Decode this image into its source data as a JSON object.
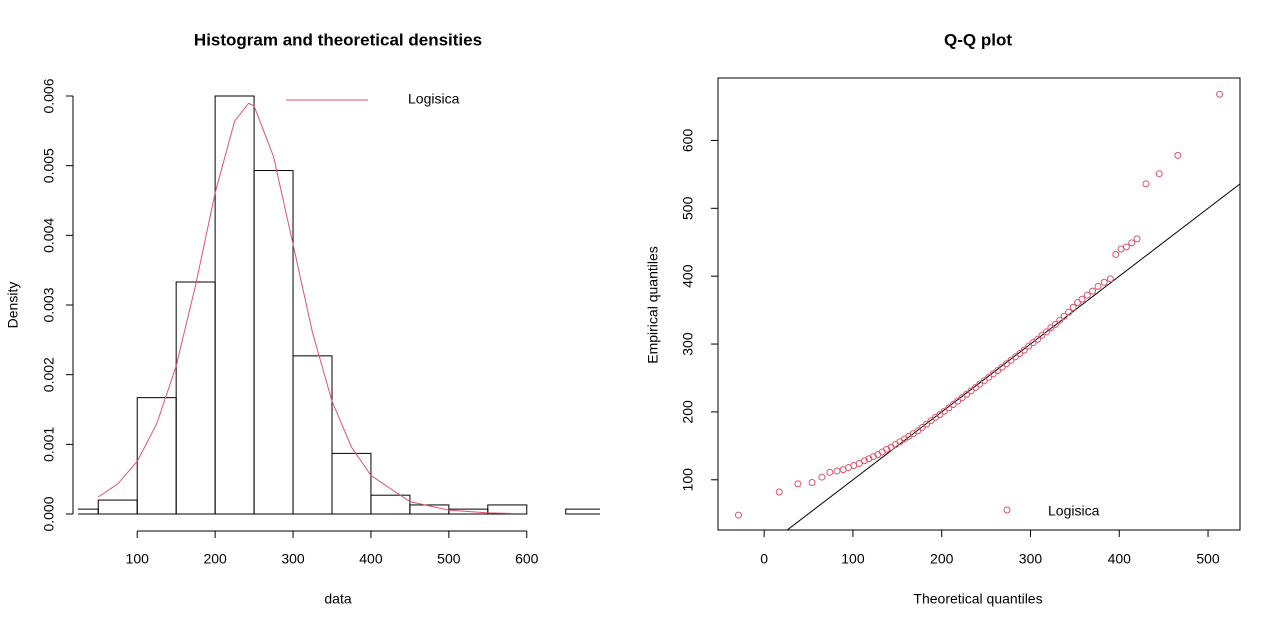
{
  "chart_data": [
    {
      "type": "histogram",
      "title": "Histogram and theoretical densities",
      "x_label": "data",
      "y_label": "Density",
      "bins": [
        0,
        50,
        100,
        150,
        200,
        250,
        300,
        350,
        400,
        450,
        500,
        550,
        600,
        650,
        700
      ],
      "values": [
        7e-05,
        0.0002,
        0.00167,
        0.00333,
        0.006,
        0.00493,
        0.00227,
        0.00087,
        0.00027,
        0.00013,
        7e-05,
        0.00013,
        0,
        7e-05
      ],
      "color": "#000000",
      "series": [
        {
          "name": "Logisica",
          "color": "#DF536B",
          "x": [
            50,
            75,
            100,
            125,
            150,
            175,
            200,
            225,
            243,
            250,
            275,
            300,
            325,
            350,
            375,
            400,
            450,
            500,
            550,
            580
          ],
          "values": [
            0.000244,
            0.000432,
            0.000756,
            0.001294,
            0.002127,
            0.003288,
            0.00461,
            0.005638,
            0.005896,
            0.005856,
            0.00513,
            0.003871,
            0.002603,
            0.00162,
            0.00096,
            0.000554,
            0.000177,
            5.5e-05,
            1.7e-05,
            8.3e-06
          ]
        }
      ],
      "legend": "top-right",
      "xlim": [
        24,
        694
      ],
      "ylim": [
        0,
        0.006
      ],
      "xticks": [
        100,
        200,
        300,
        400,
        500,
        600
      ],
      "yticks": [
        {
          "value": 0,
          "label": "0.000"
        },
        {
          "value": 0.001,
          "label": "0.001"
        },
        {
          "value": 0.002,
          "label": "0.002"
        },
        {
          "value": 0.003,
          "label": "0.003"
        },
        {
          "value": 0.004,
          "label": "0.004"
        },
        {
          "value": 0.005,
          "label": "0.005"
        },
        {
          "value": 0.006,
          "label": "0.006"
        }
      ]
    },
    {
      "type": "scatter",
      "title": "Q-Q plot",
      "x_label": "Theoretical quantiles",
      "y_label": "Empirical quantiles",
      "series": [
        {
          "name": "Logisica",
          "color": "#DF536B",
          "x": [
            -29,
            17,
            38,
            54,
            65,
            74,
            82,
            89,
            95,
            101,
            107,
            113,
            118,
            123,
            128,
            133,
            138,
            143,
            148,
            153,
            158,
            163,
            168,
            173,
            178,
            183,
            188,
            193,
            198,
            203,
            208,
            213,
            218,
            223,
            228,
            233,
            238,
            243,
            248,
            253,
            258,
            263,
            268,
            273,
            278,
            283,
            288,
            293,
            298,
            303,
            308,
            313,
            318,
            323,
            328,
            333,
            338,
            343,
            348,
            353,
            358,
            364,
            370,
            376,
            383,
            390,
            396,
            402,
            408,
            414,
            420,
            430,
            445,
            466,
            513
          ],
          "values": [
            48,
            82,
            94,
            96,
            104,
            111,
            113,
            115,
            118,
            121,
            124,
            128,
            131,
            134,
            137,
            141,
            145,
            148,
            152,
            156,
            160,
            164,
            168,
            172,
            177,
            182,
            187,
            192,
            196,
            201,
            206,
            211,
            216,
            221,
            226,
            231,
            236,
            241,
            246,
            251,
            256,
            261,
            266,
            271,
            276,
            281,
            286,
            291,
            297,
            302,
            307,
            313,
            318,
            324,
            329,
            335,
            341,
            347,
            354,
            361,
            366,
            372,
            378,
            385,
            391,
            396,
            432,
            440,
            443,
            449,
            455,
            536,
            551,
            578,
            668
          ]
        }
      ],
      "reference_line": {
        "slope": 1,
        "intercept": 0,
        "color": "#000000"
      },
      "legend": "bottom-right",
      "xlim": [
        -52,
        536
      ],
      "ylim": [
        26,
        692
      ],
      "xticks": [
        0,
        100,
        200,
        300,
        400,
        500
      ],
      "yticks": [
        100,
        200,
        300,
        400,
        500,
        600
      ]
    }
  ]
}
